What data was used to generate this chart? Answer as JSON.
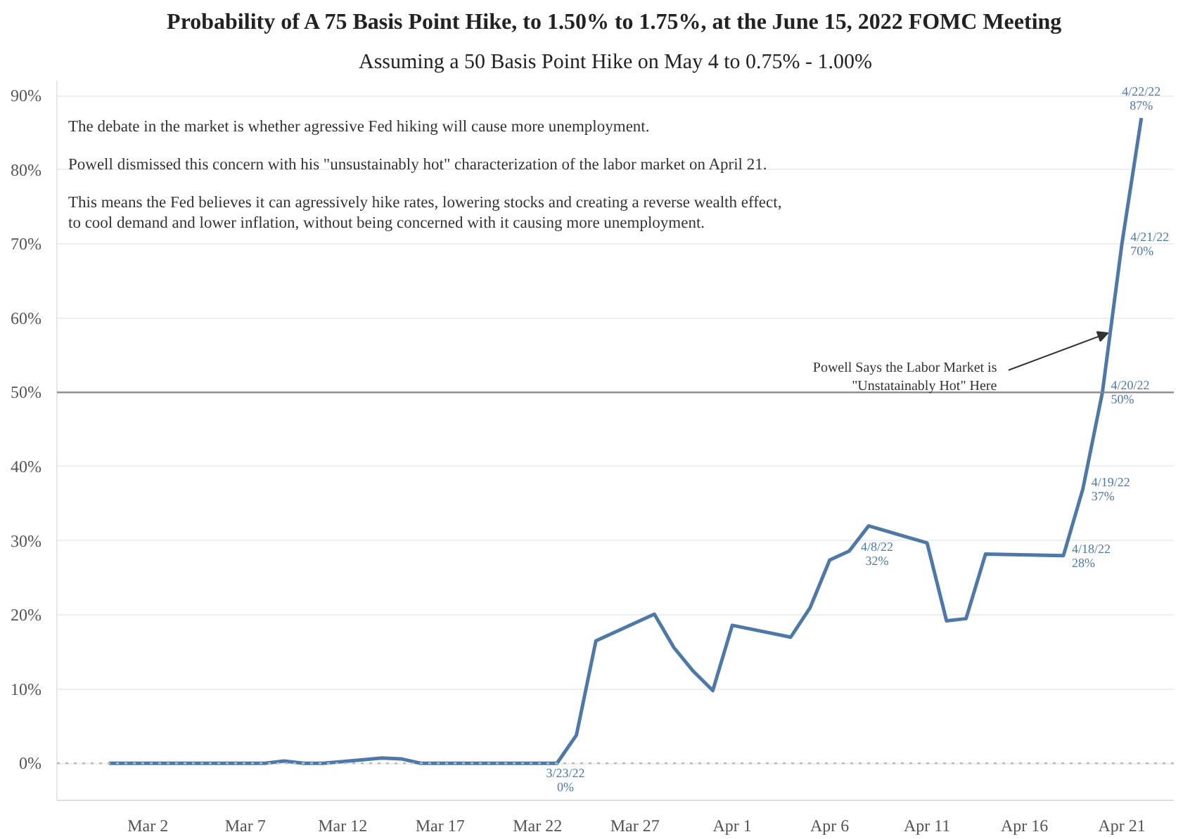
{
  "chart_data": {
    "type": "line",
    "title": "Probability of A 75 Basis Point Hike, to 1.50% to 1.75%, at the June 15, 2022 FOMC Meeting",
    "subtitle": "Assuming a 50 Basis Point Hike on May 4 to 0.75% - 1.00%",
    "x": [
      "2022-02-28",
      "2022-03-01",
      "2022-03-02",
      "2022-03-03",
      "2022-03-04",
      "2022-03-07",
      "2022-03-08",
      "2022-03-09",
      "2022-03-10",
      "2022-03-11",
      "2022-03-14",
      "2022-03-15",
      "2022-03-16",
      "2022-03-17",
      "2022-03-18",
      "2022-03-21",
      "2022-03-22",
      "2022-03-23",
      "2022-03-24",
      "2022-03-25",
      "2022-03-28",
      "2022-03-29",
      "2022-03-30",
      "2022-03-31",
      "2022-04-01",
      "2022-04-04",
      "2022-04-05",
      "2022-04-06",
      "2022-04-07",
      "2022-04-08",
      "2022-04-11",
      "2022-04-12",
      "2022-04-13",
      "2022-04-14",
      "2022-04-18",
      "2022-04-19",
      "2022-04-20",
      "2022-04-21",
      "2022-04-22"
    ],
    "series": [
      {
        "color": "#4e79a7",
        "values": [
          0,
          0,
          0,
          0,
          0,
          0,
          0,
          0.3,
          0,
          0,
          0.7,
          0.6,
          0,
          0,
          0,
          0,
          0,
          0,
          3.8,
          16.5,
          20.1,
          15.6,
          12.4,
          9.8,
          18.6,
          17.0,
          21.0,
          27.4,
          28.6,
          32,
          29.7,
          19.2,
          19.5,
          28.2,
          28,
          37,
          50,
          70,
          87
        ],
        "value_labels": [
          null,
          null,
          null,
          null,
          null,
          null,
          null,
          null,
          null,
          null,
          null,
          null,
          null,
          null,
          null,
          null,
          null,
          "3/23/22\n0%",
          null,
          null,
          null,
          null,
          null,
          null,
          null,
          null,
          null,
          null,
          null,
          "4/8/22\n32%",
          null,
          null,
          null,
          null,
          "4/18/22\n28%",
          "4/19/22\n37%",
          "4/20/22\n50%",
          "4/21/22\n70%",
          "4/22/22\n87%"
        ]
      }
    ],
    "xlim": [
      "2022-02-25T08:00",
      "2022-04-23T16:00"
    ],
    "xticks": [
      {
        "value": "2022-03-02",
        "label": "Mar 2"
      },
      {
        "value": "2022-03-07",
        "label": "Mar 7"
      },
      {
        "value": "2022-03-12",
        "label": "Mar 12"
      },
      {
        "value": "2022-03-17",
        "label": "Mar 17"
      },
      {
        "value": "2022-03-22",
        "label": "Mar 22"
      },
      {
        "value": "2022-03-27",
        "label": "Mar 27"
      },
      {
        "value": "2022-04-01",
        "label": "Apr 1"
      },
      {
        "value": "2022-04-06",
        "label": "Apr 6"
      },
      {
        "value": "2022-04-11",
        "label": "Apr 11"
      },
      {
        "value": "2022-04-16",
        "label": "Apr 16"
      },
      {
        "value": "2022-04-21",
        "label": "Apr 21"
      }
    ],
    "ylim": [
      -5,
      92
    ],
    "yticks": [
      {
        "value": 0,
        "label": "0%"
      },
      {
        "value": 10,
        "label": "10%"
      },
      {
        "value": 20,
        "label": "20%"
      },
      {
        "value": 30,
        "label": "30%"
      },
      {
        "value": 40,
        "label": "40%"
      },
      {
        "value": 50,
        "label": "50%"
      },
      {
        "value": 60,
        "label": "60%"
      },
      {
        "value": 70,
        "label": "70%"
      },
      {
        "value": 80,
        "label": "80%"
      },
      {
        "value": 90,
        "label": "90%"
      }
    ],
    "grid": "y",
    "line_style": "solid",
    "marker": "none",
    "ref_lines": [
      {
        "axis": "y",
        "value": 50,
        "color": "#888888",
        "line_style": "solid"
      },
      {
        "axis": "y",
        "value": 0,
        "color": "#bbbbbb",
        "line_style": "dotted"
      }
    ],
    "annotations": [
      "The debate in the market is whether agressive Fed hiking will cause more unemployment.",
      "Powell dismissed this concern with his \"unsustainably hot\" characterization of the labor market on April 21.",
      "This means the Fed believes it can agressively hike rates, lowering stocks and creating a reverse wealth effect,\nto cool demand and lower inflation, without being concerned with it causing more unemployment.",
      {
        "text": "Powell Says the Labor Market is\n\"Unstatainably Hot\" Here",
        "x": "2022-04-20T14:00",
        "y": 58
      }
    ]
  }
}
